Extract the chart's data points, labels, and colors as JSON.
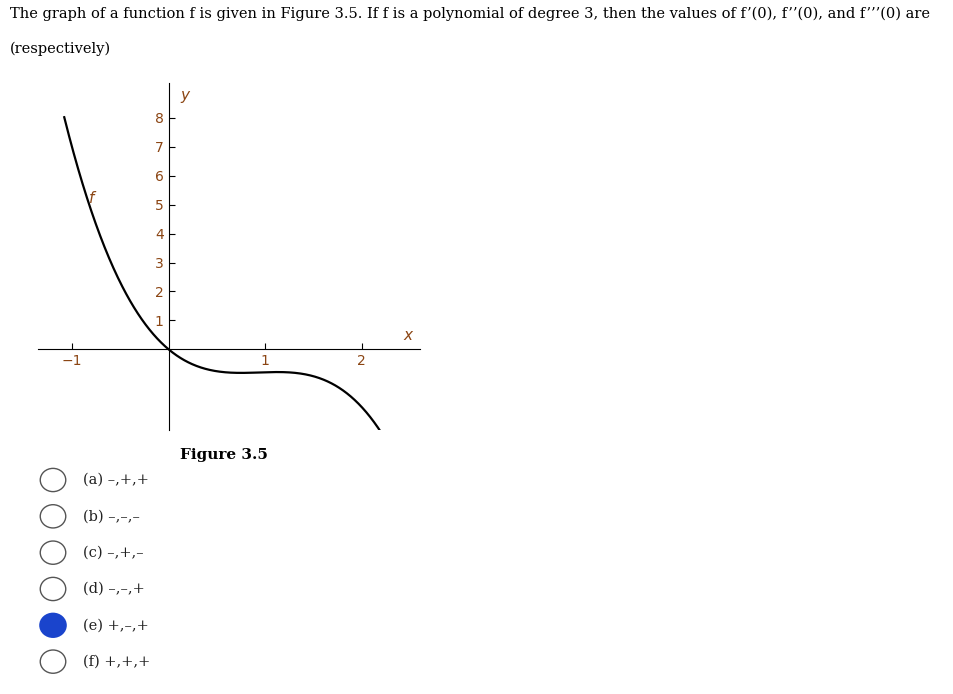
{
  "figure_caption": "Figure 3.5",
  "curve_color": "#000000",
  "axis_color": "#000000",
  "tick_label_color": "#8B4513",
  "background_color": "#ffffff",
  "answer_box_color": "#fadadd",
  "answer_box_border": "#cc0000",
  "options": [
    "(a) –,+,+",
    "(b) –,–,–",
    "(c) –,+,–",
    "(d) –,–,+",
    "(e) +,–,+",
    "(f) +,+,+"
  ],
  "selected_option": 4,
  "xlim": [
    -1.35,
    2.6
  ],
  "ylim": [
    -2.8,
    9.2
  ],
  "xticks": [
    -1,
    1,
    2
  ],
  "yticks": [
    1,
    2,
    3,
    4,
    5,
    6,
    7,
    8
  ],
  "xlabel": "x",
  "ylabel": "y",
  "curve_label": "f",
  "curve_x_start": -1.08,
  "curve_x_end": 2.35,
  "poly_a": 0.0,
  "poly_b": 0.0,
  "poly_c": -3.0,
  "poly_d": 1.0
}
